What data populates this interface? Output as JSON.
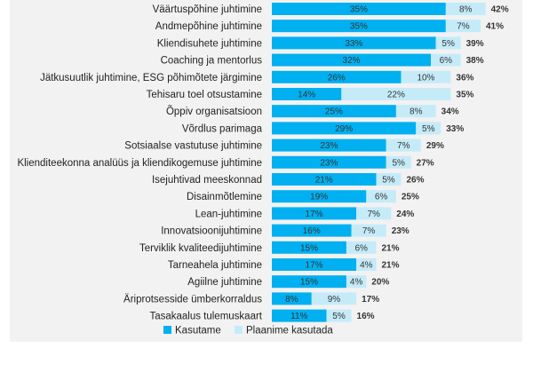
{
  "chart_data": {
    "type": "bar",
    "orientation": "horizontal",
    "stacked": true,
    "categories": [
      "Väärtuspõhine juhtimine",
      "Andmepõhine juhtimine",
      "Kliendisuhete juhtimine",
      "Coaching ja mentorlus",
      "Jätkusuutlik juhtimine, ESG põhimõtete järgimine",
      "Tehisaru toel otsustamine",
      "Õppiv organisatsioon",
      "Võrdlus parimaga",
      "Sotsiaalse vastutuse juhtimine",
      "Klienditeekonna analüüs ja kliendikogemuse juhtimine",
      "Isejuhtivad meeskonnad",
      "Disainmõtlemine",
      "Lean-juhtimine",
      "Innovatsioonijuhtimine",
      "Terviklik kvaliteedijuhtimine",
      "Tarneahela juhtimine",
      "Agiilne juhtimine",
      "Äriprotsesside ümberkorraldus",
      "Tasakaalus tulemuskaart"
    ],
    "series": [
      {
        "name": "Kasutame",
        "color": "#00b0f0",
        "values": [
          35,
          35,
          33,
          32,
          26,
          14,
          25,
          29,
          23,
          23,
          21,
          19,
          17,
          16,
          15,
          17,
          15,
          8,
          11
        ],
        "labels": [
          "35%",
          "35%",
          "33%",
          "32%",
          "26%",
          "14%",
          "25%",
          "29%",
          "23%",
          "23%",
          "21%",
          "19%",
          "17%",
          "16%",
          "15%",
          "17%",
          "15%",
          "8%",
          "11%"
        ]
      },
      {
        "name": "Plaanime kasutada",
        "color": "#c5ebf9",
        "values": [
          8,
          7,
          5,
          6,
          10,
          22,
          8,
          5,
          7,
          5,
          5,
          6,
          7,
          7,
          6,
          4,
          4,
          9,
          5
        ],
        "labels": [
          "8%",
          "7%",
          "5%",
          "6%",
          "10%",
          "22%",
          "8%",
          "5%",
          "7%",
          "5%",
          "5%",
          "6%",
          "7%",
          "7%",
          "6%",
          "4%",
          "4%",
          "9%",
          "5%"
        ]
      }
    ],
    "totals": [
      42,
      41,
      39,
      38,
      36,
      35,
      34,
      33,
      29,
      27,
      26,
      25,
      24,
      23,
      21,
      21,
      20,
      17,
      16
    ],
    "total_labels": [
      "42%",
      "41%",
      "39%",
      "38%",
      "36%",
      "35%",
      "34%",
      "33%",
      "29%",
      "27%",
      "26%",
      "25%",
      "24%",
      "23%",
      "21%",
      "21%",
      "20%",
      "17%",
      "16%"
    ],
    "xlim": [
      0,
      42
    ],
    "legend": "bottom",
    "grid": false,
    "background": "#f2f2f2"
  }
}
